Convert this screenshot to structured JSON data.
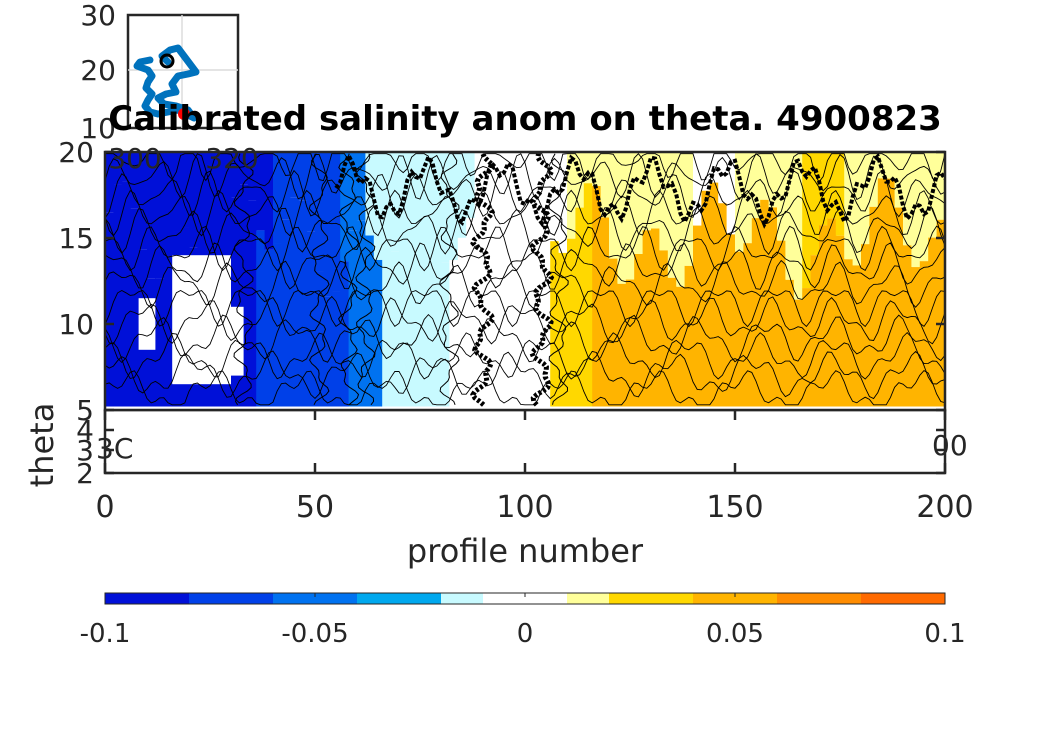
{
  "chart_data": [
    {
      "type": "heatmap",
      "title": "Calibrated salinity anom on theta. 4900823",
      "xlabel": "profile number",
      "ylabel": "theta",
      "xlim": [
        0,
        200
      ],
      "ylim": [
        2,
        20
      ],
      "x_ticks": [
        "0",
        "50",
        "100",
        "150",
        "200"
      ],
      "y_ticks": [
        "2",
        "3",
        "4",
        "5",
        "10",
        "15",
        "20"
      ],
      "grid": false,
      "column_anomaly": [
        {
          "x": 0,
          "value": -0.1
        },
        {
          "x": 10,
          "value": -0.1
        },
        {
          "x": 20,
          "value": -0.09
        },
        {
          "x": 30,
          "value": -0.1
        },
        {
          "x": 35,
          "value": -0.075
        },
        {
          "x": 45,
          "value": -0.075
        },
        {
          "x": 52,
          "value": -0.06
        },
        {
          "x": 58,
          "value": -0.05
        },
        {
          "x": 65,
          "value": -0.015
        },
        {
          "x": 75,
          "value": -0.015
        },
        {
          "x": 82,
          "value": -0.005
        },
        {
          "x": 90,
          "value": 0.0
        },
        {
          "x": 100,
          "value": 0.0
        },
        {
          "x": 105,
          "value": 0.03
        },
        {
          "x": 115,
          "value": 0.045
        },
        {
          "x": 125,
          "value": 0.055
        },
        {
          "x": 135,
          "value": 0.06
        },
        {
          "x": 145,
          "value": 0.06
        },
        {
          "x": 160,
          "value": 0.05
        },
        {
          "x": 170,
          "value": 0.045
        },
        {
          "x": 185,
          "value": 0.05
        },
        {
          "x": 200,
          "value": 0.06
        }
      ],
      "upper_layer_anomaly": [
        {
          "x": 0,
          "value": -0.1
        },
        {
          "x": 30,
          "value": -0.09
        },
        {
          "x": 40,
          "value": -0.07
        },
        {
          "x": 55,
          "value": -0.04
        },
        {
          "x": 62,
          "value": -0.015
        },
        {
          "x": 80,
          "value": -0.015
        },
        {
          "x": 88,
          "value": -0.005
        },
        {
          "x": 100,
          "value": 0.0
        },
        {
          "x": 110,
          "value": 0.02
        },
        {
          "x": 125,
          "value": 0.015
        },
        {
          "x": 140,
          "value": 0.0
        },
        {
          "x": 150,
          "value": 0.015
        },
        {
          "x": 165,
          "value": 0.025
        },
        {
          "x": 175,
          "value": 0.015
        },
        {
          "x": 190,
          "value": 0.015
        },
        {
          "x": 200,
          "value": 0.03
        }
      ]
    },
    {
      "type": "colorbar",
      "range": [
        -0.1,
        0.1
      ],
      "tick_labels": [
        "-0.1",
        "-0.05",
        "0",
        "0.05",
        "0.1"
      ],
      "levels": [
        -0.1,
        -0.08,
        -0.06,
        -0.04,
        -0.02,
        -0.01,
        0.01,
        0.02,
        0.04,
        0.06,
        0.08,
        0.1
      ],
      "colors": [
        "#0010d8",
        "#0040e8",
        "#0072f0",
        "#00a8ee",
        "#c8faff",
        "#ffffff",
        "#ffff9a",
        "#ffd800",
        "#ffb400",
        "#ff8c00",
        "#ff6a00"
      ]
    },
    {
      "type": "scatter",
      "name": "float trajectory inset",
      "y_ticks": [
        "30",
        "20",
        "10"
      ],
      "x_ticks": [
        "300",
        "320"
      ],
      "grid": true,
      "track_color": "#0072bd",
      "start_marker_color": "#000000",
      "end_marker_color": "#ff0000"
    }
  ],
  "labels": {
    "bottom_axis_left_overlap": "3C",
    "bottom_axis_right_overlap": "00",
    "bottom_axis_y_overlap": "4\n3"
  }
}
